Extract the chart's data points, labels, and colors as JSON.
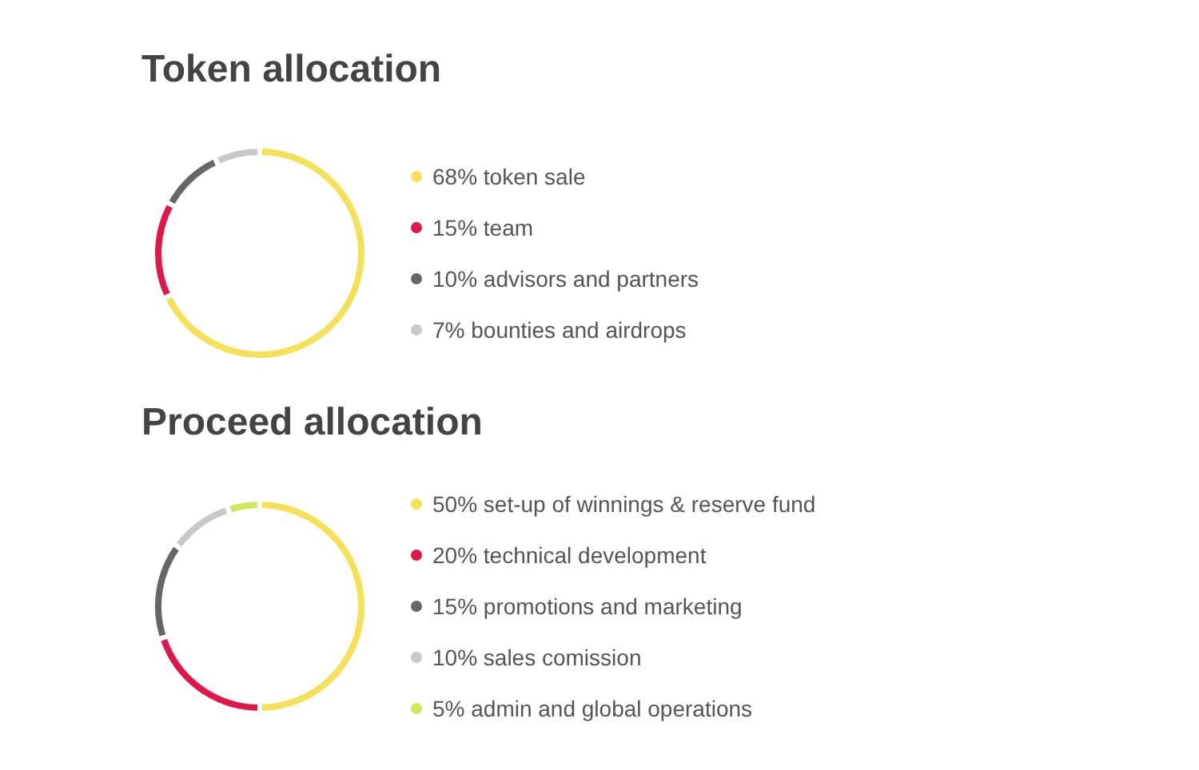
{
  "chart_data": [
    {
      "type": "donut",
      "title": "Token allocation",
      "categories": [
        "68% token sale",
        "15% team",
        "10% advisors and partners",
        "7% bounties and airdrops"
      ],
      "values": [
        68,
        15,
        10,
        7
      ],
      "colors": [
        "#f5e05a",
        "#e0174a",
        "#666666",
        "#c8c8c8"
      ],
      "legend": "right"
    },
    {
      "type": "donut",
      "title": "Proceed allocation",
      "categories": [
        "50% set-up of winnings & reserve fund",
        "20% technical development",
        "15% promotions and marketing",
        "10% sales comission",
        "5% admin and global operations"
      ],
      "values": [
        50,
        20,
        15,
        10,
        5
      ],
      "colors": [
        "#f5e05a",
        "#e0174a",
        "#666666",
        "#c8c8c8",
        "#cde85a"
      ],
      "legend": "right"
    }
  ]
}
